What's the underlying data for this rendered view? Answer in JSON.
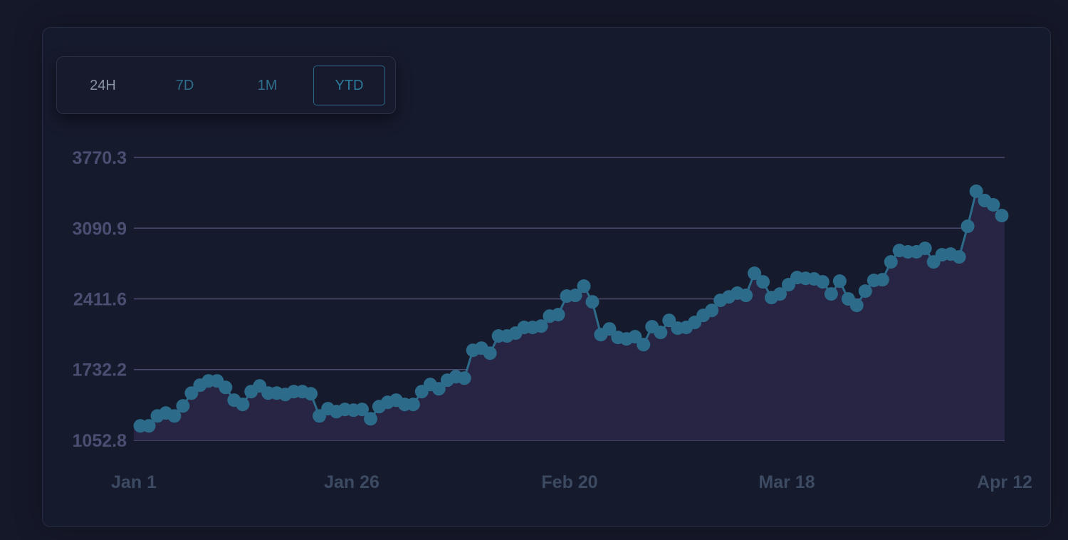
{
  "range_selector": {
    "buttons": [
      {
        "label": "24H",
        "active": false
      },
      {
        "label": "7D",
        "active": false
      },
      {
        "label": "1M",
        "active": false
      },
      {
        "label": "YTD",
        "active": true
      }
    ]
  },
  "colors": {
    "background": "#151829",
    "line": "#2c6c8a",
    "area_fill": "#272543",
    "grid": "#4c4a70"
  },
  "chart_data": {
    "type": "area",
    "title": "",
    "xlabel": "",
    "ylabel": "",
    "grid": true,
    "y_ticks": [
      "1052.8",
      "1732.2",
      "2411.6",
      "3090.9",
      "3770.3"
    ],
    "ylim": [
      1052.8,
      3770.3
    ],
    "x_ticks": [
      "Jan 1",
      "Jan 26",
      "Feb 20",
      "Mar 18",
      "Apr 12"
    ],
    "x_start": "Jan 1",
    "x_end": "Apr 12",
    "series": [
      {
        "values": [
          1191,
          1191,
          1286,
          1314,
          1286,
          1383,
          1506,
          1582,
          1623,
          1623,
          1561,
          1438,
          1397,
          1520,
          1575,
          1506,
          1506,
          1493,
          1520,
          1520,
          1499,
          1286,
          1356,
          1328,
          1349,
          1342,
          1349,
          1259,
          1376,
          1417,
          1438,
          1397,
          1397,
          1520,
          1589,
          1548,
          1630,
          1664,
          1650,
          1917,
          1938,
          1890,
          2055,
          2055,
          2082,
          2137,
          2137,
          2150,
          2246,
          2260,
          2438,
          2445,
          2534,
          2383,
          2068,
          2123,
          2041,
          2027,
          2048,
          1972,
          2144,
          2089,
          2205,
          2130,
          2137,
          2185,
          2253,
          2301,
          2397,
          2431,
          2466,
          2445,
          2657,
          2575,
          2424,
          2459,
          2548,
          2616,
          2609,
          2603,
          2575,
          2459,
          2582,
          2411,
          2349,
          2486,
          2589,
          2596,
          2767,
          2876,
          2863,
          2863,
          2897,
          2767,
          2835,
          2842,
          2815,
          3109,
          3445,
          3356,
          3315,
          3212
        ]
      }
    ]
  }
}
